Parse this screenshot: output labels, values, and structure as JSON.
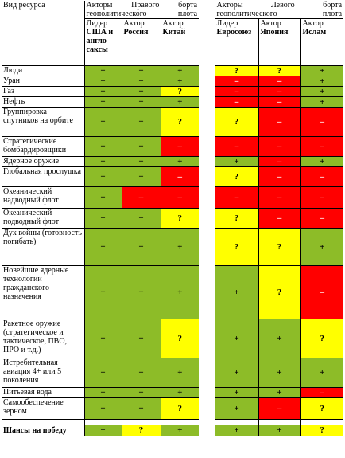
{
  "header": {
    "resource_col": "Вид ресурса",
    "right_group": "Акторы Правого борта геополитического плота",
    "left_group": "Акторы Левого борта геополитического плота",
    "actors": [
      {
        "role": "Лидер",
        "name": "США и англо-саксы"
      },
      {
        "role": "Актор",
        "name": "Россия"
      },
      {
        "role": "Актор",
        "name": "Китай"
      },
      {
        "role": "Лидер",
        "name": "Евросоюз"
      },
      {
        "role": "Актор",
        "name": "Япония"
      },
      {
        "role": "Актор",
        "name": "Ислам"
      }
    ]
  },
  "legend_colors": {
    "plus": "#8dbc28",
    "question": "#ffff00",
    "minus": "#ff0000"
  },
  "rows": [
    {
      "label": "Люди",
      "marks": [
        "+",
        "+",
        "+",
        "?",
        "?",
        "+"
      ]
    },
    {
      "label": "Уран",
      "marks": [
        "+",
        "+",
        "+",
        "–",
        "–",
        "+"
      ]
    },
    {
      "label": "Газ",
      "marks": [
        "+",
        "+",
        "?",
        "–",
        "–",
        "+"
      ]
    },
    {
      "label": "Нефть",
      "marks": [
        "+",
        "+",
        "+",
        "–",
        "–",
        "+"
      ]
    },
    {
      "label": "Группировка спутников на орбите",
      "marks": [
        "+",
        "+",
        "?",
        "?",
        "–",
        "–"
      ]
    },
    {
      "label": "Стратегические бомбардировщики",
      "marks": [
        "+",
        "+",
        "–",
        "–",
        "–",
        "–"
      ]
    },
    {
      "label": "Ядерное оружие",
      "marks": [
        "+",
        "+",
        "+",
        "+",
        "–",
        "+"
      ]
    },
    {
      "label": "Глобальная прослушка",
      "marks": [
        "+",
        "+",
        "–",
        "?",
        "–",
        "–"
      ]
    },
    {
      "label": "Океанический надводный флот",
      "marks": [
        "+",
        "–",
        "–",
        "–",
        "–",
        "–"
      ]
    },
    {
      "label": "Океанический подводный флот",
      "marks": [
        "+",
        "+",
        "?",
        "?",
        "–",
        "–"
      ]
    },
    {
      "label": "Дух войны (готовность погибать)",
      "marks": [
        "+",
        "+",
        "+",
        "?",
        "?",
        "+"
      ]
    },
    {
      "label": "Новейшие ядерные технологии гражданского назначения",
      "marks": [
        "+",
        "+",
        "+",
        "+",
        "?",
        "–"
      ]
    },
    {
      "label": "Ракетное оружие (стратегическое и тактическое, ПВО, ПРО и т.д.)",
      "marks": [
        "+",
        "+",
        "?",
        "+",
        "+",
        "?"
      ]
    },
    {
      "label": "Истребительная авиация 4+ или 5 поколения",
      "marks": [
        "+",
        "+",
        "+",
        "+",
        "+",
        "+"
      ]
    },
    {
      "label": "Питьевая вода",
      "marks": [
        "+",
        "+",
        "+",
        "+",
        "+",
        "–"
      ]
    },
    {
      "label": "Самообеспечение зерном",
      "marks": [
        "+",
        "+",
        "?",
        "+",
        "–",
        "?"
      ]
    }
  ],
  "chances": {
    "label": "Шансы на победу",
    "marks": [
      "+",
      "?",
      "+",
      "+",
      "+",
      "?"
    ]
  }
}
